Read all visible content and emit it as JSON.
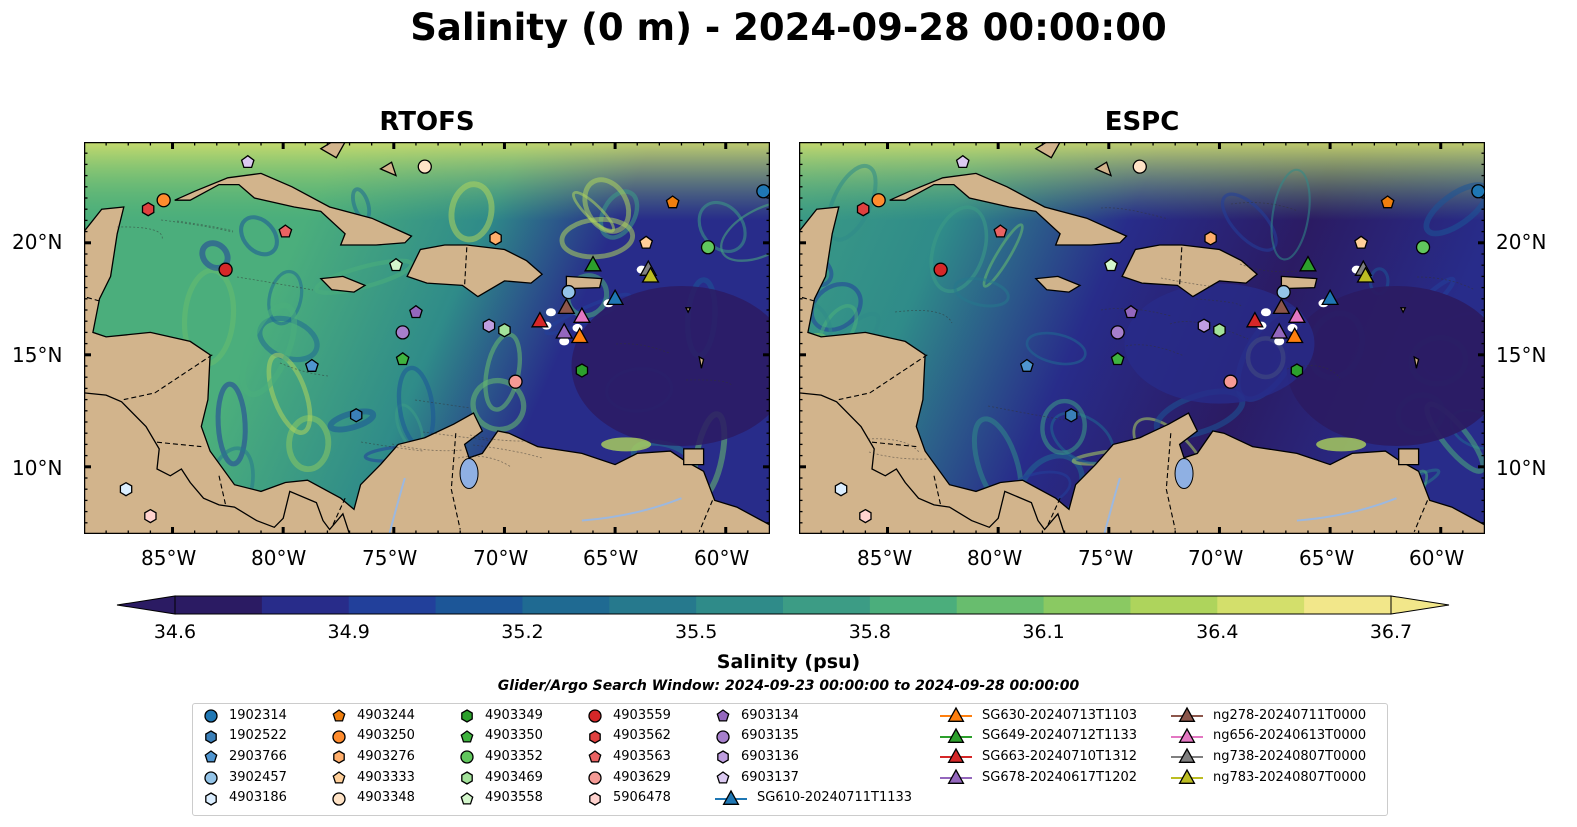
{
  "title": "Salinity (0 m) - 2024-09-28 00:00:00",
  "panels": [
    {
      "title": "RTOFS"
    },
    {
      "title": "ESPC"
    }
  ],
  "lat_ticks": [
    "20°N",
    "15°N",
    "10°N"
  ],
  "lon_ticks": [
    "85°W",
    "80°W",
    "75°W",
    "70°W",
    "65°W",
    "60°W"
  ],
  "colorbar": {
    "label": "Salinity (psu)",
    "ticks": [
      "34.6",
      "34.9",
      "35.2",
      "35.5",
      "35.8",
      "36.1",
      "36.4",
      "36.7"
    ],
    "vmin": 34.6,
    "vmax": 36.7,
    "colors": [
      "#2b1b63",
      "#282c8a",
      "#22409b",
      "#1c5698",
      "#1f6a92",
      "#26798d",
      "#2f8b89",
      "#3c9c85",
      "#4bae7c",
      "#68bd6e",
      "#8ac962",
      "#aed45c",
      "#d3df6b",
      "#f2e78a"
    ]
  },
  "search_window": "Glider/Argo Search Window: 2024-09-23 00:00:00 to 2024-09-28 00:00:00",
  "legend": {
    "columns": [
      [
        {
          "label": "1902314",
          "marker": "circle",
          "color": "#1f77b4"
        },
        {
          "label": "1902522",
          "marker": "hexagon",
          "color": "#3a7fb8"
        },
        {
          "label": "2903766",
          "marker": "pentagon",
          "color": "#4f95d0"
        },
        {
          "label": "3902457",
          "marker": "circle",
          "color": "#94c4e8"
        },
        {
          "label": "4903186",
          "marker": "hexagon",
          "color": "#dbeeff"
        }
      ],
      [
        {
          "label": "4903244",
          "marker": "pentagon",
          "color": "#f07f0e"
        },
        {
          "label": "4903250",
          "marker": "circle",
          "color": "#ff8c2e"
        },
        {
          "label": "4903276",
          "marker": "hexagon",
          "color": "#ffae6b"
        },
        {
          "label": "4903333",
          "marker": "pentagon",
          "color": "#ffcf99"
        },
        {
          "label": "4903348",
          "marker": "circle",
          "color": "#ffe3c6"
        }
      ],
      [
        {
          "label": "4903349",
          "marker": "hexagon",
          "color": "#2ca02c"
        },
        {
          "label": "4903350",
          "marker": "pentagon",
          "color": "#3fb33f"
        },
        {
          "label": "4903352",
          "marker": "circle",
          "color": "#61c75d"
        },
        {
          "label": "4903469",
          "marker": "hexagon",
          "color": "#a3e29a"
        },
        {
          "label": "4903558",
          "marker": "pentagon",
          "color": "#d4f7cc"
        }
      ],
      [
        {
          "label": "4903559",
          "marker": "circle",
          "color": "#d62728"
        },
        {
          "label": "4903562",
          "marker": "hexagon",
          "color": "#e0403f"
        },
        {
          "label": "4903563",
          "marker": "pentagon",
          "color": "#ea6363"
        },
        {
          "label": "4903629",
          "marker": "circle",
          "color": "#f59a95"
        },
        {
          "label": "5906478",
          "marker": "hexagon",
          "color": "#ffd3cf"
        }
      ],
      [
        {
          "label": "6903134",
          "marker": "pentagon",
          "color": "#9467bd"
        },
        {
          "label": "6903135",
          "marker": "circle",
          "color": "#a67fcc"
        },
        {
          "label": "6903136",
          "marker": "hexagon",
          "color": "#bf9ee0"
        },
        {
          "label": "6903137",
          "marker": "pentagon",
          "color": "#dccaf2"
        },
        {
          "label": "SG610-20240711T1133",
          "marker": "triangle",
          "color": "#1f77b4"
        }
      ],
      [
        {
          "label": "SG630-20240713T1103",
          "marker": "triangle",
          "color": "#ff7f0e"
        },
        {
          "label": "SG649-20240712T1133",
          "marker": "triangle",
          "color": "#2ca02c"
        },
        {
          "label": "SG663-20240710T1312",
          "marker": "triangle",
          "color": "#d62728"
        },
        {
          "label": "SG678-20240617T1202",
          "marker": "triangle",
          "color": "#9467bd"
        }
      ],
      [
        {
          "label": "ng278-20240711T0000",
          "marker": "triangle",
          "color": "#8c564b"
        },
        {
          "label": "ng656-20240613T0000",
          "marker": "triangle",
          "color": "#e377c2"
        },
        {
          "label": "ng738-20240807T0000",
          "marker": "triangle",
          "color": "#7f7f7f"
        },
        {
          "label": "ng783-20240807T0000",
          "marker": "triangle",
          "color": "#bcbd22"
        }
      ]
    ]
  },
  "map_data": {
    "lon_range": [
      -89,
      -58
    ],
    "lat_range": [
      7,
      24.5
    ],
    "argo_floats": [
      {
        "id": "1902314",
        "lon": -58.3,
        "lat": 22.3
      },
      {
        "id": "1902522",
        "lon": -76.7,
        "lat": 12.3
      },
      {
        "id": "2903766",
        "lon": -78.7,
        "lat": 14.5
      },
      {
        "id": "3902457",
        "lon": -67.1,
        "lat": 17.8
      },
      {
        "id": "4903186",
        "lon": -87.1,
        "lat": 9.0
      },
      {
        "id": "4903244",
        "lon": -62.4,
        "lat": 21.8
      },
      {
        "id": "4903250",
        "lon": -85.4,
        "lat": 21.9
      },
      {
        "id": "4903276",
        "lon": -70.4,
        "lat": 20.2
      },
      {
        "id": "4903333",
        "lon": -63.6,
        "lat": 20.0
      },
      {
        "id": "4903348",
        "lon": -73.6,
        "lat": 23.4
      },
      {
        "id": "4903349",
        "lon": -66.5,
        "lat": 14.3
      },
      {
        "id": "4903350",
        "lon": -74.6,
        "lat": 14.8
      },
      {
        "id": "4903352",
        "lon": -60.8,
        "lat": 19.8
      },
      {
        "id": "4903469",
        "lon": -70.0,
        "lat": 16.1
      },
      {
        "id": "4903558",
        "lon": -74.9,
        "lat": 19.0
      },
      {
        "id": "4903559",
        "lon": -82.6,
        "lat": 18.8
      },
      {
        "id": "4903562",
        "lon": -86.1,
        "lat": 21.5
      },
      {
        "id": "4903563",
        "lon": -79.9,
        "lat": 20.5
      },
      {
        "id": "4903629",
        "lon": -69.5,
        "lat": 13.8
      },
      {
        "id": "5906478",
        "lon": -86.0,
        "lat": 7.8
      },
      {
        "id": "6903134",
        "lon": -74.0,
        "lat": 16.9
      },
      {
        "id": "6903135",
        "lon": -74.6,
        "lat": 16.0
      },
      {
        "id": "6903136",
        "lon": -70.7,
        "lat": 16.3
      },
      {
        "id": "6903137",
        "lon": -81.6,
        "lat": 23.6
      }
    ],
    "gliders": [
      {
        "id": "SG610-20240711T1133",
        "lon": -65.0,
        "lat": 17.5
      },
      {
        "id": "SG630-20240713T1103",
        "lon": -66.6,
        "lat": 15.8
      },
      {
        "id": "SG649-20240712T1133",
        "lon": -66.0,
        "lat": 19.0
      },
      {
        "id": "SG663-20240710T1312",
        "lon": -68.4,
        "lat": 16.5
      },
      {
        "id": "SG678-20240617T1202",
        "lon": -67.3,
        "lat": 16.0
      },
      {
        "id": "ng278-20240711T0000",
        "lon": -67.2,
        "lat": 17.1
      },
      {
        "id": "ng656-20240613T0000",
        "lon": -66.5,
        "lat": 16.7
      },
      {
        "id": "ng738-20240807T0000",
        "lon": -63.5,
        "lat": 18.8
      },
      {
        "id": "ng783-20240807T0000",
        "lon": -63.4,
        "lat": 18.5
      }
    ]
  }
}
